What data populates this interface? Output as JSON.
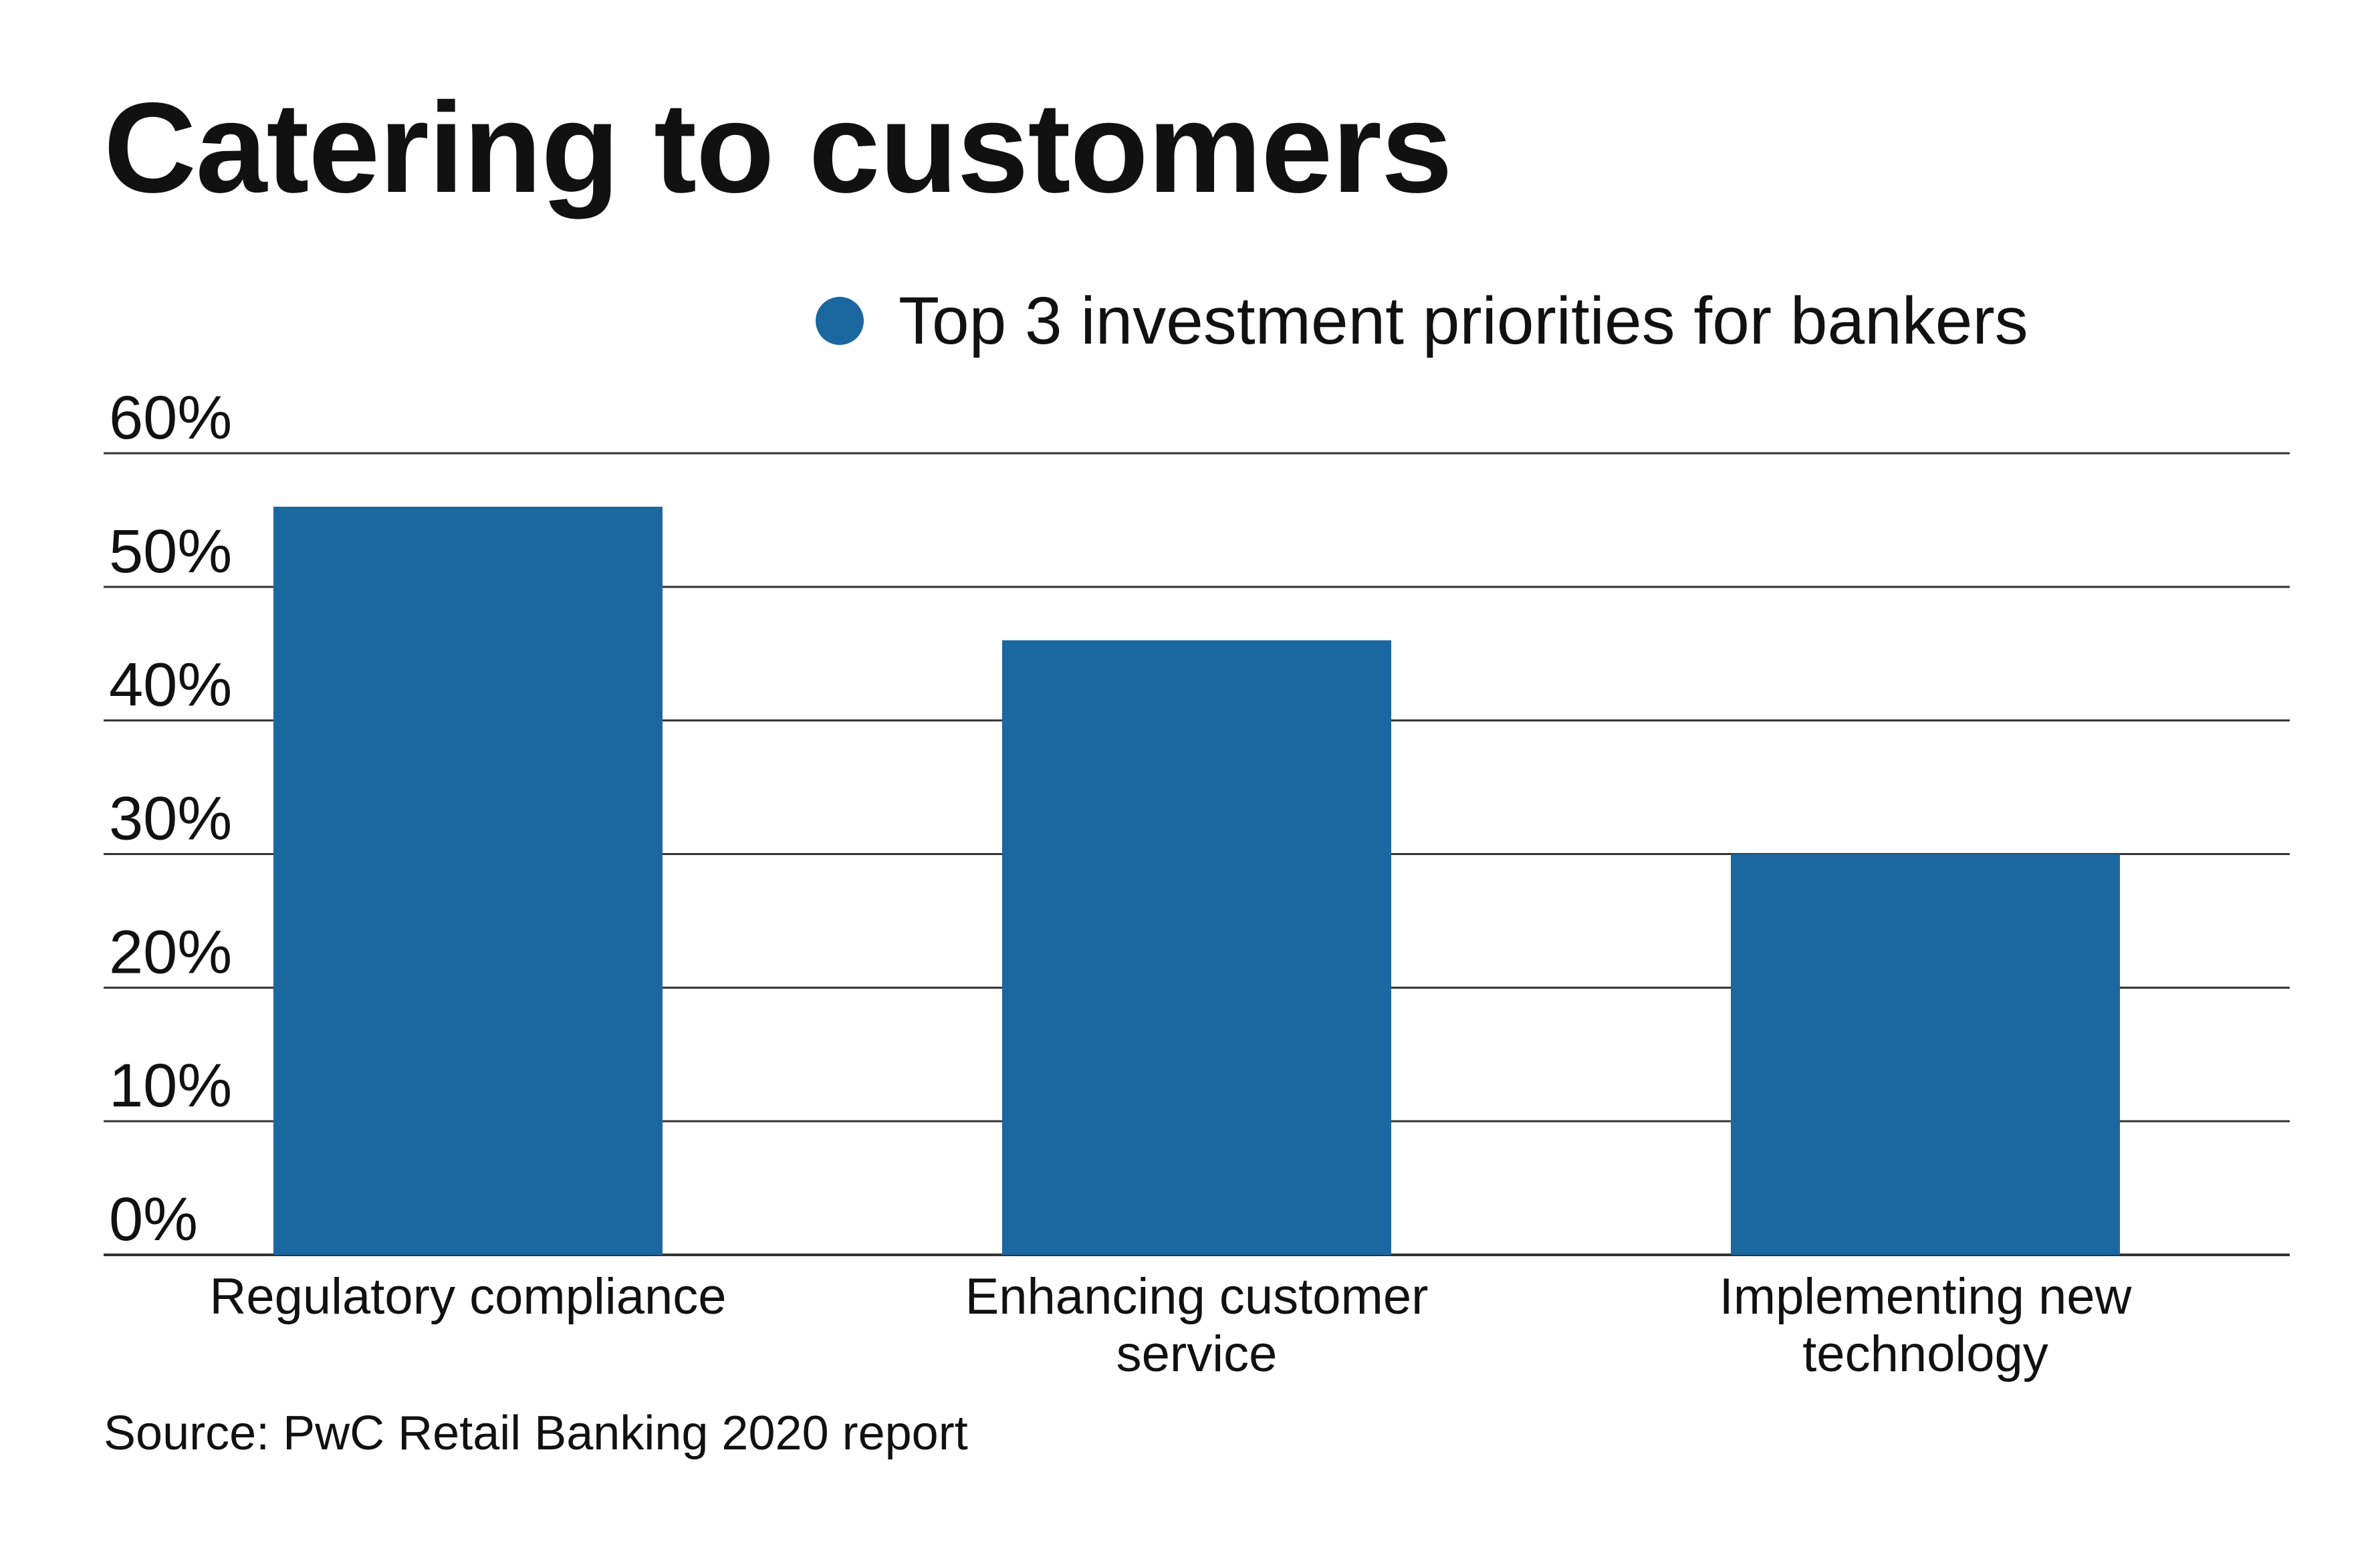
{
  "chart_data": {
    "type": "bar",
    "title": "Catering to customers",
    "categories": [
      [
        "Regulatory compliance"
      ],
      [
        "Enhancing customer",
        "service"
      ],
      [
        "Implementing new",
        "technology"
      ]
    ],
    "series": [
      {
        "name": "Top 3 investment priorities for bankers",
        "values": [
          56,
          46,
          30
        ]
      }
    ],
    "yticks": [
      "0%",
      "10%",
      "20%",
      "30%",
      "40%",
      "50%",
      "60%"
    ],
    "ylim": [
      0,
      60
    ],
    "grid": true,
    "legend": "top-right",
    "source": "Source: PwC Retail Banking 2020 report"
  },
  "colors": {
    "bar": "#1b67a0",
    "grid": "#333333",
    "text": "#111111"
  }
}
